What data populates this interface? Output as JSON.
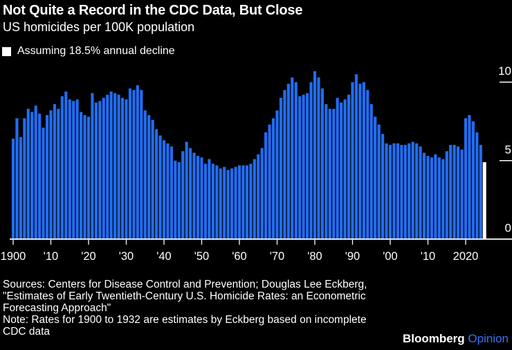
{
  "header": {
    "title": "Not Quite a Record in the CDC Data, But Close",
    "subtitle": "US homicides per 100K population"
  },
  "legend": {
    "label": "Assuming 18.5% annual decline",
    "marker_color": "#FFFFFF"
  },
  "chart_data": {
    "type": "bar",
    "title": "Not Quite a Record in the CDC Data, But Close",
    "ylabel": "US homicides per 100K population",
    "legend_entry": "Assuming 18.5% annual decline",
    "legend_position": "top-left",
    "grid": "right-edge tick lines only",
    "start_year": 1900,
    "end_year": 2025,
    "ylim": [
      0,
      10.7
    ],
    "yticks": [
      0,
      5,
      10
    ],
    "ytick_labels": [
      "0",
      "5",
      "10"
    ],
    "xticks": [
      1900,
      1910,
      1920,
      1930,
      1940,
      1950,
      1960,
      1970,
      1980,
      1990,
      2000,
      2010,
      2020
    ],
    "xtick_labels": [
      "1900",
      "'10",
      "'20",
      "'30",
      "'40",
      "'50",
      "'60",
      "'70",
      "'80",
      "'90",
      "'00",
      "'10",
      "2020"
    ],
    "values": [
      6.4,
      7.7,
      6.5,
      7.7,
      8.3,
      8.1,
      8.5,
      8.0,
      7.1,
      7.9,
      8.2,
      8.6,
      8.3,
      9.1,
      9.4,
      8.9,
      8.8,
      8.9,
      8.1,
      7.9,
      7.8,
      9.3,
      8.7,
      8.8,
      9.0,
      9.2,
      9.4,
      9.3,
      9.2,
      9.0,
      8.9,
      9.6,
      9.5,
      9.8,
      9.5,
      8.2,
      7.9,
      7.6,
      7.0,
      6.6,
      6.3,
      6.1,
      5.9,
      5.0,
      4.9,
      5.6,
      6.2,
      5.8,
      5.5,
      5.3,
      5.2,
      4.8,
      5.1,
      4.8,
      4.7,
      4.5,
      4.6,
      4.4,
      4.5,
      4.6,
      4.7,
      4.7,
      4.7,
      4.8,
      5.1,
      5.4,
      5.8,
      6.8,
      7.3,
      7.7,
      8.2,
      9.0,
      9.5,
      9.9,
      10.3,
      10.0,
      9.1,
      9.2,
      9.3,
      10.0,
      10.7,
      10.3,
      9.6,
      8.6,
      8.3,
      8.3,
      9.0,
      8.7,
      8.9,
      9.2,
      10.0,
      10.5,
      9.9,
      10.0,
      9.5,
      8.6,
      7.8,
      7.3,
      6.7,
      6.1,
      6.0,
      6.1,
      6.1,
      6.0,
      6.0,
      6.1,
      6.2,
      6.1,
      5.9,
      5.5,
      5.3,
      5.2,
      5.4,
      5.2,
      5.1,
      5.6,
      6.0,
      6.0,
      5.9,
      5.7,
      7.7,
      7.9,
      7.5,
      6.8,
      6.0,
      4.9
    ],
    "projected_final_bar": true,
    "projected_year": 2025,
    "colors": {
      "bar": "#226CF1",
      "projected_bar": "#FFFFFF",
      "axis": "#FFFFFF",
      "tick_label": "#FFFFFF",
      "background": "#000000"
    }
  },
  "footer": {
    "notes": "Sources: Centers for Disease Control and Prevention; Douglas Lee Eckberg,\n\"Estimates of Early Twentieth-Century U.S. Homicide Rates: an Econometric\nForecasting Approach\"\nNote: Rates for 1900 to 1932 are estimates by Eckberg based on incomplete\nCDC data"
  },
  "logo": {
    "bloomberg": "Bloomberg",
    "opinion": " Opinion",
    "opinion_color": "#3A73F2"
  }
}
